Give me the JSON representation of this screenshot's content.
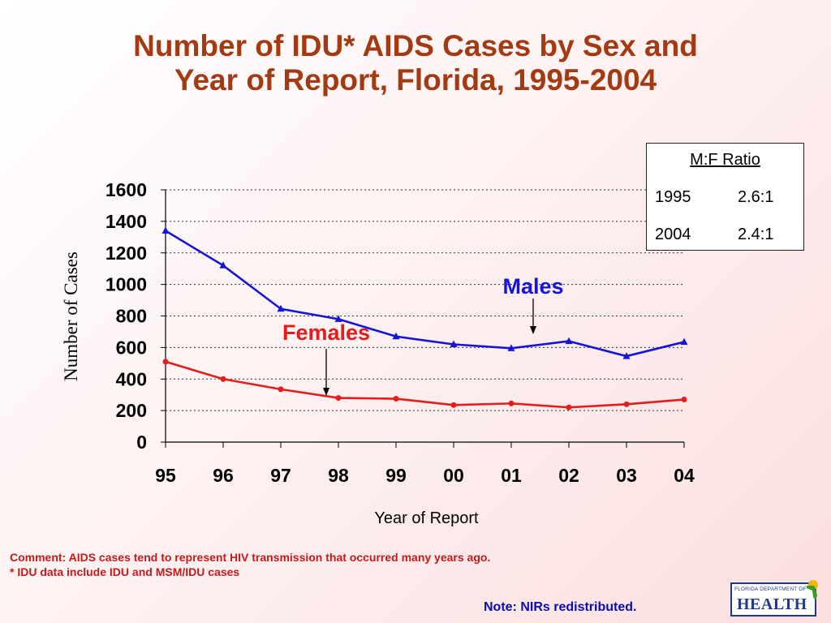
{
  "title": {
    "line1": "Number of IDU* AIDS Cases by Sex and",
    "line2": "Year of Report, Florida, 1995-2004"
  },
  "chart_data": {
    "type": "line",
    "categories": [
      "95",
      "96",
      "97",
      "98",
      "99",
      "00",
      "01",
      "02",
      "03",
      "04"
    ],
    "series": [
      {
        "name": "Males",
        "color": "#1515d9",
        "marker": "triangle",
        "values": [
          1340,
          1120,
          845,
          780,
          670,
          620,
          595,
          640,
          545,
          635
        ]
      },
      {
        "name": "Females",
        "color": "#e31c1c",
        "marker": "circle",
        "values": [
          510,
          400,
          335,
          280,
          275,
          235,
          245,
          220,
          240,
          270
        ]
      }
    ],
    "xlabel": "Year of Report",
    "ylabel": "Number of Cases",
    "ylim": [
      0,
      1600
    ],
    "yticks": [
      0,
      200,
      400,
      600,
      800,
      1000,
      1200,
      1400,
      1600
    ],
    "grid": "horizontal dotted",
    "annotations": [
      {
        "text": "Males",
        "series": "Males",
        "color": "#1515d9"
      },
      {
        "text": "Females",
        "series": "Females",
        "color": "#e31c1c"
      }
    ]
  },
  "ratio_table": {
    "title": "M:F Ratio",
    "rows": [
      {
        "year": "1995",
        "ratio": "2.6:1"
      },
      {
        "year": "2004",
        "ratio": "2.4:1"
      }
    ]
  },
  "comment": {
    "line1": "Comment: AIDS cases tend to represent HIV transmission that occurred many years ago.",
    "line2": "* IDU data include IDU and MSM/IDU cases"
  },
  "note": "Note:  NIRs redistributed.",
  "logo": {
    "top_text": "FLORIDA DEPARTMENT OF",
    "main_text": "HEALTH"
  }
}
